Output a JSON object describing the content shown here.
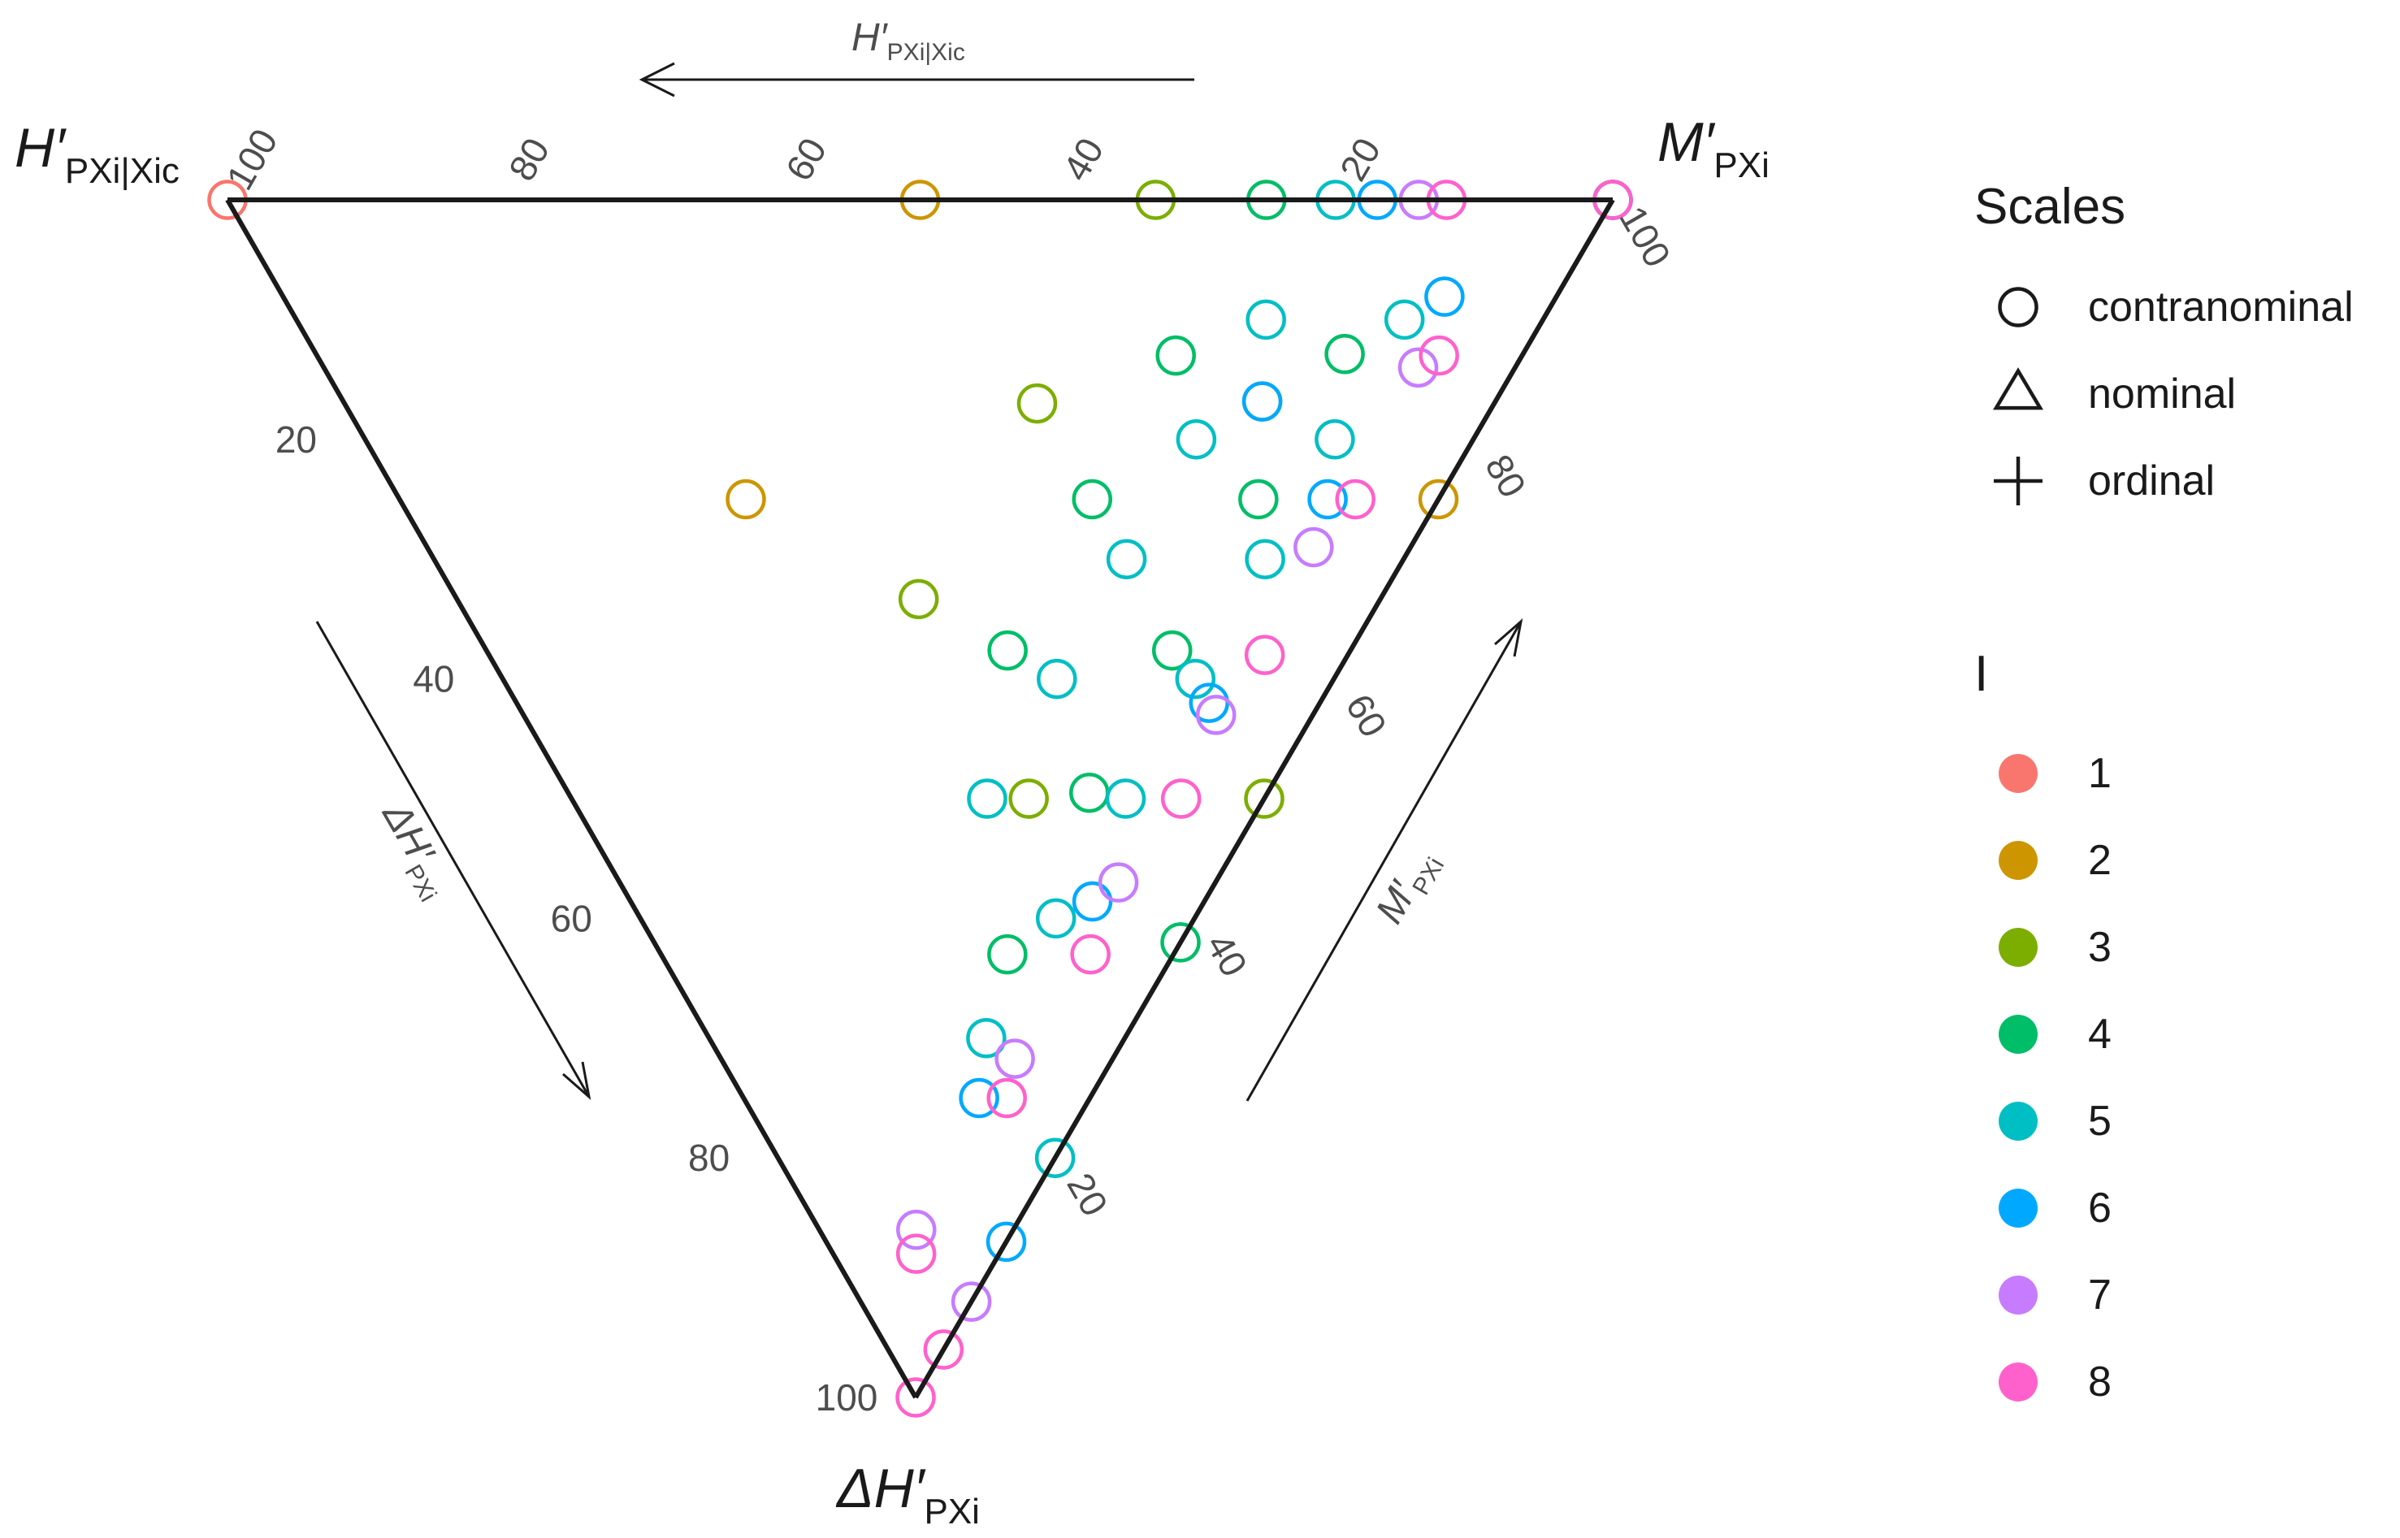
{
  "chart_data": {
    "type": "scatter",
    "subtype": "ternary",
    "axes": {
      "top_vertex_left": {
        "main": "H′",
        "sub": "PXi|Xic"
      },
      "top_vertex_right": {
        "main": "M′",
        "sub": "PXi"
      },
      "bottom_vertex": {
        "main": "ΔH′",
        "sub": "PXi"
      },
      "top_arrow_label": {
        "main": "H′",
        "sub": "PXi|Xic"
      },
      "left_arrow_label": {
        "main": "ΔH′",
        "sub": "PXi"
      },
      "right_arrow_label": {
        "main": "M′",
        "sub": "PXi"
      }
    },
    "ticks": {
      "top_edge": [
        "100",
        "80",
        "60",
        "40",
        "20"
      ],
      "left_edge": [
        "20",
        "40",
        "60",
        "80",
        "100"
      ],
      "right_edge": [
        "100",
        "80",
        "60",
        "40",
        "20"
      ]
    },
    "grid": false,
    "legend_position": "right",
    "legends": {
      "shape": {
        "title": "Scales",
        "items": [
          {
            "label": "contranominal",
            "shape": "circle"
          },
          {
            "label": "nominal",
            "shape": "triangle"
          },
          {
            "label": "ordinal",
            "shape": "plus"
          }
        ]
      },
      "color": {
        "title": "I",
        "items": [
          {
            "label": "1",
            "color": "#F8766D"
          },
          {
            "label": "2",
            "color": "#CD9600"
          },
          {
            "label": "3",
            "color": "#7CAE00"
          },
          {
            "label": "4",
            "color": "#00BE67"
          },
          {
            "label": "5",
            "color": "#00BFC4"
          },
          {
            "label": "6",
            "color": "#00A9FF"
          },
          {
            "label": "7",
            "color": "#C77CFF"
          },
          {
            "label": "8",
            "color": "#FF61CC"
          }
        ]
      }
    },
    "point_coordinates": "Each point is [H′, M′, ΔH′] in percent (sums to 100)",
    "points": [
      {
        "I": "1",
        "scale": "ordinal",
        "values": [
          [
            100,
            0,
            0
          ]
        ]
      },
      {
        "I": "1",
        "scale": "contranominal",
        "values": [
          [
            0,
            100,
            0
          ]
        ]
      },
      {
        "I": "1",
        "scale": "nominal",
        "values": [
          [
            0,
            100,
            0
          ]
        ]
      },
      {
        "I": "2",
        "scale": "ordinal",
        "values": [
          [
            50,
            50,
            0
          ],
          [
            50,
            25,
            25
          ]
        ]
      },
      {
        "I": "2",
        "scale": "nominal",
        "values": [
          [
            0,
            75,
            25
          ]
        ]
      },
      {
        "I": "2",
        "scale": "contranominal",
        "values": [
          [
            0,
            100,
            0
          ]
        ]
      },
      {
        "I": "3",
        "scale": "ordinal",
        "values": [
          [
            33,
            67,
            0
          ],
          [
            33,
            50,
            17
          ],
          [
            17,
            67,
            17
          ],
          [
            17,
            33,
            50
          ],
          [
            33,
            33,
            33
          ]
        ]
      },
      {
        "I": "3",
        "scale": "nominal",
        "values": [
          [
            0,
            50,
            50
          ]
        ]
      },
      {
        "I": "3",
        "scale": "contranominal",
        "values": [
          [
            0,
            100,
            0
          ]
        ]
      },
      {
        "I": "4",
        "scale": "ordinal",
        "values": [
          [
            25,
            75,
            0
          ],
          [
            25,
            62,
            13
          ],
          [
            13,
            75,
            13
          ],
          [
            25,
            50,
            25
          ],
          [
            13,
            62,
            25
          ],
          [
            25,
            38,
            38
          ],
          [
            13,
            50,
            38
          ],
          [
            13,
            38,
            50
          ],
          [
            12,
            25,
            63
          ]
        ]
      },
      {
        "I": "4",
        "scale": "nominal",
        "values": [
          [
            0,
            38,
            62
          ]
        ]
      },
      {
        "I": "4",
        "scale": "contranominal",
        "values": [
          [
            0,
            100,
            0
          ]
        ]
      },
      {
        "I": "5",
        "scale": "ordinal",
        "values": [
          [
            20,
            80,
            0
          ],
          [
            20,
            70,
            10
          ],
          [
            10,
            80,
            10
          ],
          [
            20,
            60,
            20
          ],
          [
            10,
            70,
            20
          ],
          [
            20,
            50,
            30
          ],
          [
            10,
            60,
            30
          ],
          [
            20,
            40,
            40
          ],
          [
            10,
            50,
            40
          ],
          [
            20,
            30,
            50
          ],
          [
            10,
            40,
            50
          ],
          [
            10,
            30,
            60
          ],
          [
            10,
            20,
            70
          ]
        ]
      },
      {
        "I": "5",
        "scale": "nominal",
        "values": [
          [
            0,
            20,
            80
          ]
        ]
      },
      {
        "I": "5",
        "scale": "contranominal",
        "values": [
          [
            0,
            100,
            0
          ]
        ]
      },
      {
        "I": "6",
        "scale": "ordinal",
        "values": [
          [
            17,
            83,
            0
          ],
          [
            8,
            83,
            8
          ],
          [
            17,
            67,
            17
          ],
          [
            8,
            67,
            25
          ],
          [
            8,
            50,
            42
          ],
          [
            8,
            33,
            58
          ],
          [
            8,
            17,
            75
          ]
        ]
      },
      {
        "I": "6",
        "scale": "nominal",
        "values": [
          [
            0,
            13,
            87
          ]
        ]
      },
      {
        "I": "6",
        "scale": "contranominal",
        "values": [
          [
            0,
            100,
            0
          ]
        ]
      },
      {
        "I": "7",
        "scale": "ordinal",
        "values": [
          [
            14,
            86,
            0
          ],
          [
            7,
            79,
            14
          ],
          [
            7,
            64,
            29
          ],
          [
            7,
            50,
            43
          ],
          [
            7,
            36,
            57
          ],
          [
            7,
            21,
            71
          ],
          [
            7,
            7,
            86
          ]
        ]
      },
      {
        "I": "7",
        "scale": "nominal",
        "values": [
          [
            0,
            8,
            92
          ]
        ]
      },
      {
        "I": "7",
        "scale": "contranominal",
        "values": [
          [
            0,
            100,
            0
          ]
        ]
      },
      {
        "I": "8",
        "scale": "ordinal",
        "values": [
          [
            12,
            88,
            0
          ],
          [
            6,
            81,
            13
          ],
          [
            6,
            69,
            25
          ],
          [
            6,
            56,
            38
          ],
          [
            6,
            44,
            50
          ],
          [
            6,
            31,
            63
          ],
          [
            6,
            19,
            75
          ],
          [
            6,
            6,
            88
          ],
          [
            0,
            0,
            100
          ]
        ]
      },
      {
        "I": "8",
        "scale": "nominal",
        "values": [
          [
            0,
            4,
            96
          ]
        ]
      },
      {
        "I": "8",
        "scale": "contranominal",
        "values": [
          [
            0,
            100,
            0
          ]
        ]
      }
    ]
  }
}
